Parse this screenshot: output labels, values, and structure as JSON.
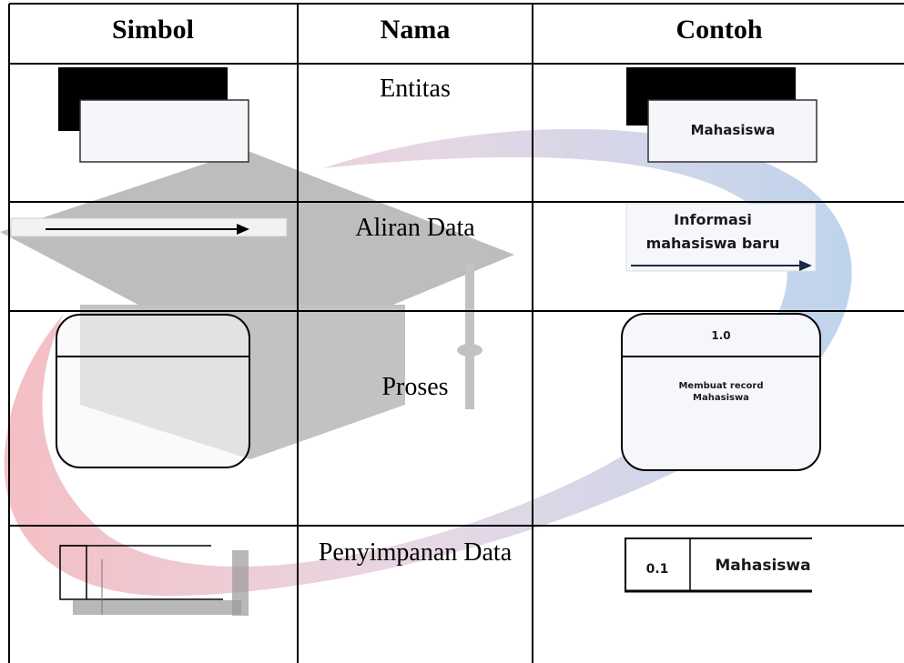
{
  "table": {
    "header": [
      "Simbol",
      "Nama",
      "Contoh"
    ],
    "rows": [
      {
        "name": "Entitas",
        "example_lines": [
          "Mahasiswa"
        ]
      },
      {
        "name": "Aliran Data",
        "example_lines": [
          "Informasi",
          "mahasiswa baru"
        ]
      },
      {
        "name": "Proses",
        "example_id": "1.0",
        "example_lines": [
          "Membuat record",
          "Mahasiswa"
        ]
      },
      {
        "name": "Penyimpanan Data",
        "example_id": "0.1",
        "example_lines": [
          "Mahasiswa"
        ]
      }
    ]
  }
}
